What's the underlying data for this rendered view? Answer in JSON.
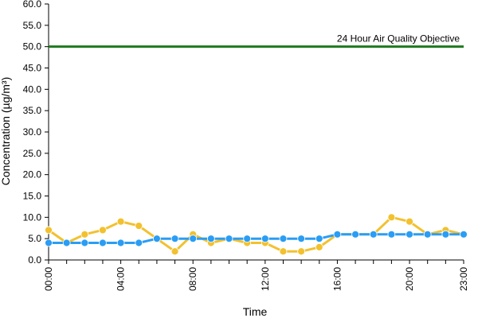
{
  "chart_data": {
    "type": "line",
    "xlabel": "Time",
    "ylabel": "Concentration (µg/m³)",
    "ylim": [
      0,
      60
    ],
    "y_ticks": [
      0,
      5,
      10,
      15,
      20,
      25,
      30,
      35,
      40,
      45,
      50,
      55,
      60
    ],
    "y_tick_labels": [
      "0.0",
      "5.0",
      "10.0",
      "15.0",
      "20.0",
      "25.0",
      "30.0",
      "35.0",
      "40.0",
      "45.0",
      "50.0",
      "55.0",
      "60.0"
    ],
    "x_ticks": [
      "00:00",
      "04:00",
      "08:00",
      "12:00",
      "16:00",
      "20:00",
      "23:00"
    ],
    "x": [
      "00:00",
      "01:00",
      "02:00",
      "03:00",
      "04:00",
      "05:00",
      "06:00",
      "07:00",
      "08:00",
      "09:00",
      "10:00",
      "11:00",
      "12:00",
      "13:00",
      "14:00",
      "15:00",
      "16:00",
      "17:00",
      "18:00",
      "19:00",
      "20:00",
      "21:00",
      "22:00",
      "23:00"
    ],
    "grid": false,
    "reference_line": {
      "value": 50,
      "label": "24 Hour Air Quality Objective",
      "color": "#1f7a1f"
    },
    "series": [
      {
        "color": "#f2c12e",
        "values": [
          7,
          4,
          6,
          7,
          9,
          8,
          5,
          2,
          6,
          4,
          5,
          4,
          4,
          2,
          2,
          3,
          6,
          6,
          6,
          10,
          9,
          6,
          7,
          6
        ]
      },
      {
        "color": "#2a9df4",
        "values": [
          4,
          4,
          4,
          4,
          4,
          4,
          5,
          5,
          5,
          5,
          5,
          5,
          5,
          5,
          5,
          5,
          6,
          6,
          6,
          6,
          6,
          6,
          6,
          6
        ]
      }
    ]
  }
}
